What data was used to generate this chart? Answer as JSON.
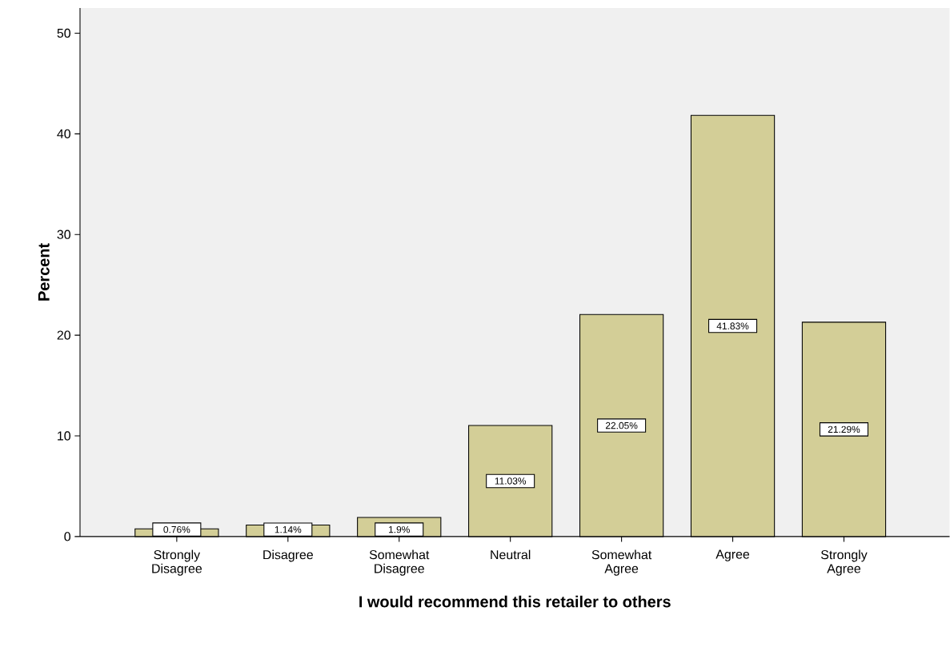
{
  "chart_data": {
    "type": "bar",
    "categories": [
      "Strongly Disagree",
      "Disagree",
      "Somewhat Disagree",
      "Neutral",
      "Somewhat Agree",
      "Agree",
      "Strongly Agree"
    ],
    "values": [
      0.76,
      1.14,
      1.9,
      11.03,
      22.05,
      41.83,
      21.29
    ],
    "value_labels": [
      "0.76%",
      "1.14%",
      "1.9%",
      "11.03%",
      "22.05%",
      "41.83%",
      "21.29%"
    ],
    "color": "#d3ce97",
    "ylim": [
      0,
      52.5
    ],
    "yticks": [
      0,
      10,
      20,
      30,
      40,
      50
    ],
    "xlabel": "I would recommend this retailer to others",
    "ylabel": "Percent"
  }
}
